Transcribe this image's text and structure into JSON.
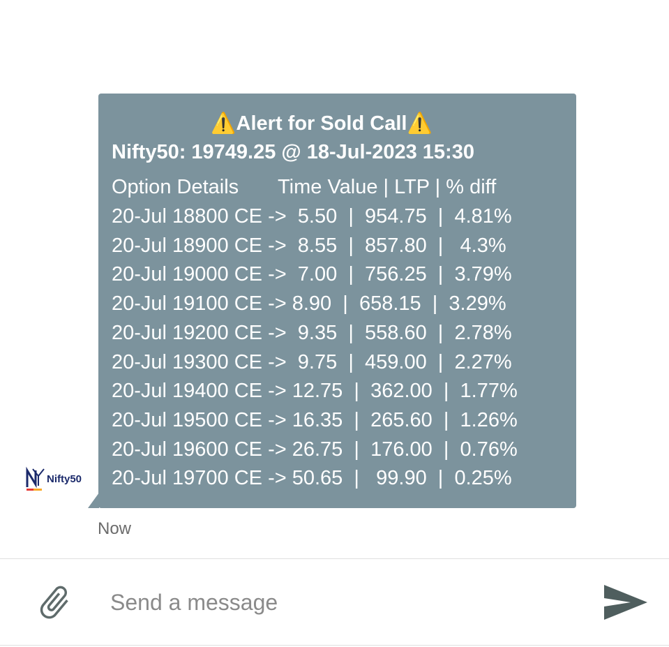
{
  "message": {
    "title": "⚠️Alert for Sold Call⚠️",
    "subtitle": "Nifty50: 19749.25 @ 18-Jul-2023 15:30",
    "header": "Option Details       Time Value | LTP | % diff",
    "rows": [
      "20-Jul 18800 CE ->  5.50  |  954.75  |  4.81%",
      "20-Jul 18900 CE ->  8.55  |  857.80  |   4.3%",
      "20-Jul 19000 CE ->  7.00  |  756.25  |  3.79%",
      "20-Jul 19100 CE -> 8.90  |  658.15  |  3.29%",
      "20-Jul 19200 CE ->  9.35  |  558.60  |  2.78%",
      "20-Jul 19300 CE ->  9.75  |  459.00  |  2.27%",
      "20-Jul 19400 CE -> 12.75  |  362.00  |  1.77%",
      "20-Jul 19500 CE -> 16.35  |  265.60  |  1.26%",
      "20-Jul 19600 CE -> 26.75  |  176.00  |  0.76%",
      "20-Jul 19700 CE -> 50.65  |   99.90  |  0.25%"
    ],
    "time": "Now"
  },
  "avatar": {
    "label": "Nifty50"
  },
  "input": {
    "placeholder": "Send a message"
  }
}
